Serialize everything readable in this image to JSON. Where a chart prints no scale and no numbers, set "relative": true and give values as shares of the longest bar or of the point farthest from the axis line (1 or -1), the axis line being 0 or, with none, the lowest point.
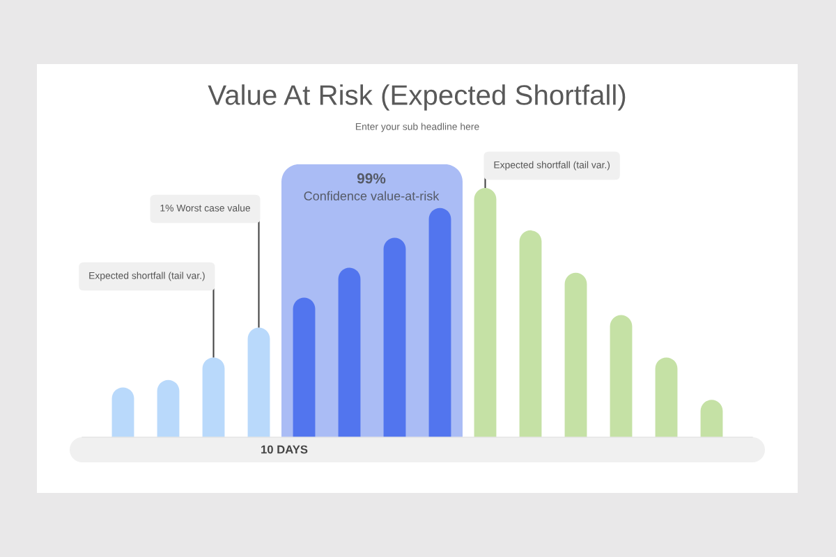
{
  "chart_data": {
    "type": "bar",
    "title": "Value At Risk (Expected Shortfall)",
    "subtitle": "Enter your sub headline here",
    "xlabel": "10 DAYS",
    "relative": true,
    "categories": [
      null,
      null,
      null,
      null,
      null,
      null,
      null,
      null,
      null,
      null,
      null,
      null,
      null,
      null
    ],
    "values": [
      0.2,
      0.23,
      0.32,
      0.44,
      0.56,
      0.68,
      0.8,
      0.92,
      1,
      0.83,
      0.66,
      0.49,
      0.32,
      0.15
    ],
    "colors": [
      "#b9d9fb",
      "#b9d9fb",
      "#b9d9fb",
      "#b9d9fb",
      "#5275ee",
      "#5275ee",
      "#5275ee",
      "#5275ee",
      "#c5e1a5",
      "#c5e1a5",
      "#c5e1a5",
      "#c5e1a5",
      "#c5e1a5",
      "#c5e1a5"
    ],
    "annotations": [
      "Expected shortfall (tail var.)",
      "1% Worst case value",
      "99%\nConfidence value-at-risk",
      "Expected shortfall (tail var.)"
    ]
  }
}
